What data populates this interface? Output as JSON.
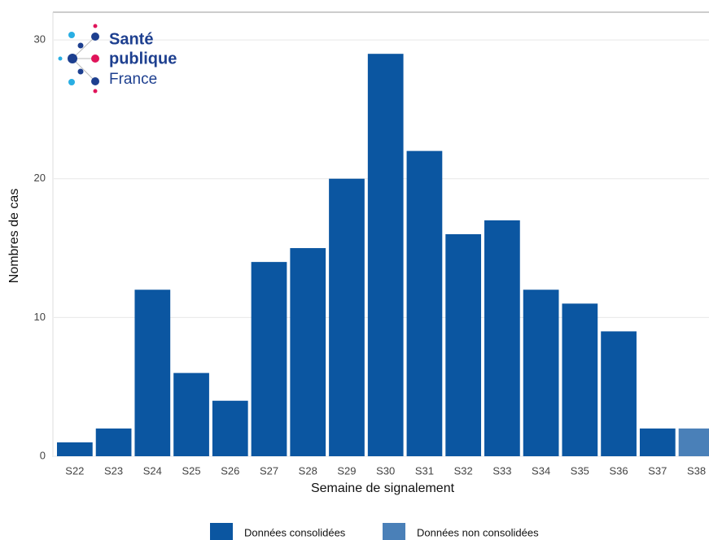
{
  "chart_data": {
    "type": "bar",
    "logo": [
      "Santé",
      "publique",
      "France"
    ],
    "x_label": "Semaine de signalement",
    "y_label": "Nombres de cas",
    "categories": [
      "S22",
      "S23",
      "S24",
      "S25",
      "S26",
      "S27",
      "S28",
      "S29",
      "S30",
      "S31",
      "S32",
      "S33",
      "S34",
      "S35",
      "S36",
      "S37",
      "S38"
    ],
    "series": [
      {
        "name": "Données consolidées",
        "color": "#0b56a1",
        "values": [
          1,
          2,
          12,
          6,
          4,
          14,
          15,
          20,
          29,
          22,
          16,
          17,
          12,
          11,
          9,
          2,
          null
        ]
      },
      {
        "name": "Données non consolidées",
        "color": "#4a80b8",
        "values": [
          null,
          null,
          null,
          null,
          null,
          null,
          null,
          null,
          null,
          null,
          null,
          null,
          null,
          null,
          null,
          null,
          2
        ]
      }
    ],
    "ylim": [
      0,
      32
    ],
    "yticks": [
      0,
      10,
      20,
      30
    ],
    "grid": true
  }
}
